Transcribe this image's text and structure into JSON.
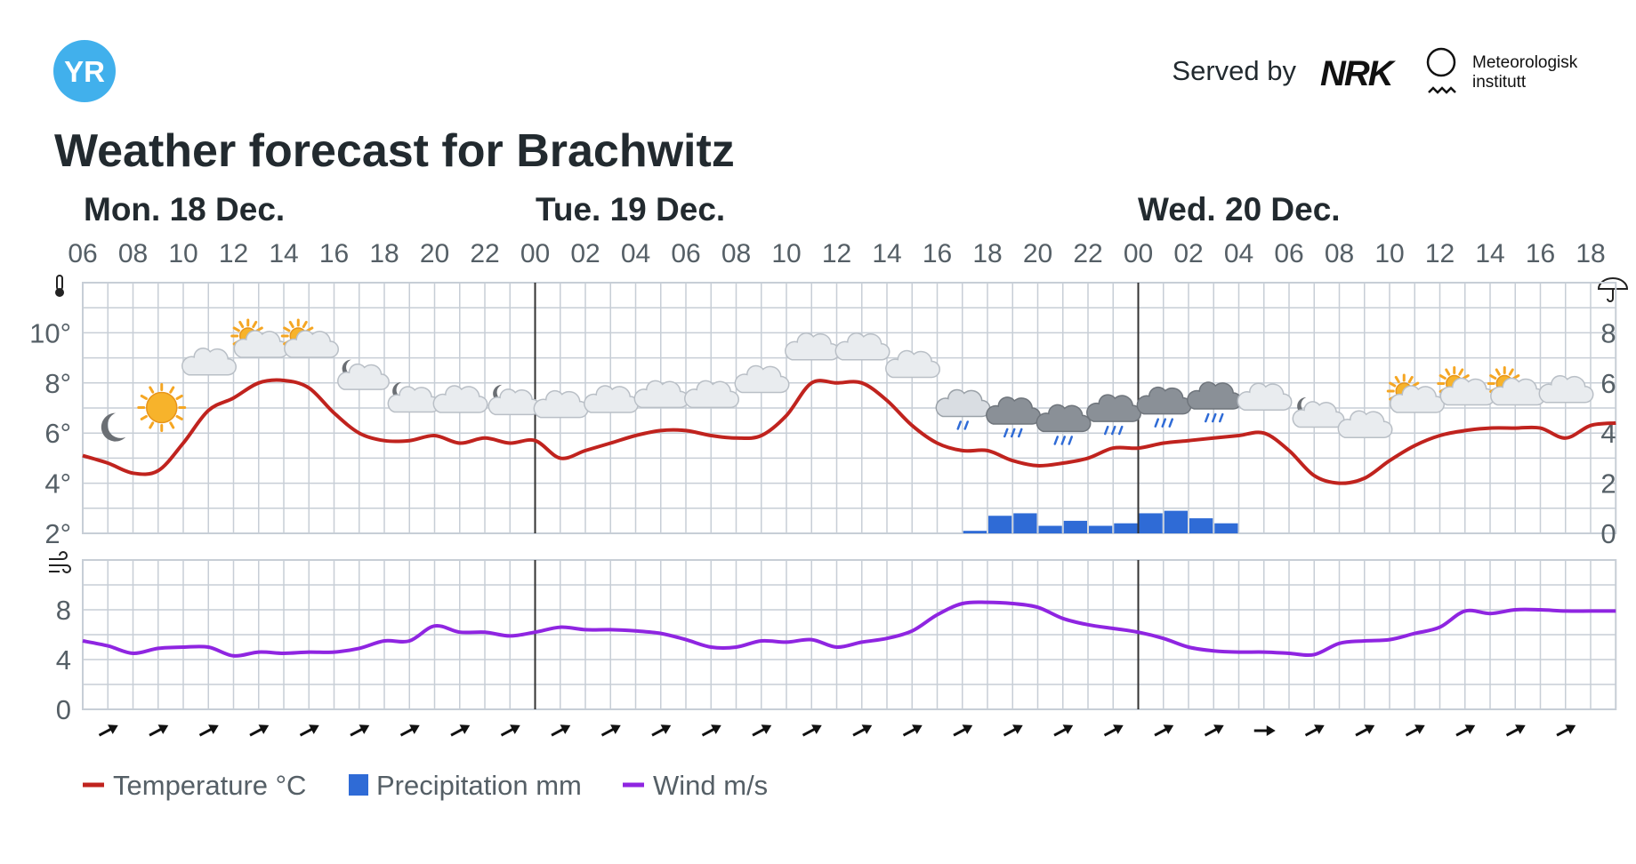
{
  "header": {
    "logo_text": "YR",
    "served_by": "Served by",
    "nrk_logo_text": "NRK",
    "met_name_line1": "Meteorologisk",
    "met_name_line2": "institutt"
  },
  "title": "Weather forecast for Brachwitz",
  "days": [
    "Mon. 18 Dec.",
    "Tue. 19 Dec.",
    "Wed. 20 Dec."
  ],
  "colors": {
    "temperature": "#c0231e",
    "precipitation": "#2f6bd6",
    "wind": "#8f25e1",
    "grid": "#c7ced6",
    "day_separator": "#333333",
    "logo": "#41b0ec",
    "text": "#222a2f",
    "muted_text": "#555f66"
  },
  "legend": {
    "temperature": "Temperature °C",
    "precipitation": "Precipitation mm",
    "wind": "Wind m/s"
  },
  "chart_data": [
    {
      "type": "line",
      "panel": "temperature-and-precipitation",
      "x_start": "Mon 18 Dec 06:00",
      "x_step_hours": 1,
      "x_tick_labels": [
        "06",
        "08",
        "10",
        "12",
        "14",
        "16",
        "18",
        "20",
        "22",
        "00",
        "02",
        "04",
        "06",
        "08",
        "10",
        "12",
        "14",
        "16",
        "18",
        "20",
        "22",
        "00",
        "02",
        "04",
        "06",
        "08",
        "10",
        "12",
        "14",
        "16",
        "18"
      ],
      "y_left_ticks": [
        "2°",
        "4°",
        "6°",
        "8°",
        "10°"
      ],
      "y_left_range": [
        2,
        12
      ],
      "y_right_ticks": [
        "0",
        "2",
        "4",
        "6",
        "8"
      ],
      "y_right_range": [
        0,
        10
      ],
      "grid": true,
      "series": [
        {
          "name": "Temperature °C",
          "values": [
            5.1,
            4.8,
            4.4,
            4.5,
            5.6,
            6.9,
            7.4,
            8.0,
            8.1,
            7.8,
            6.8,
            6.0,
            5.7,
            5.7,
            5.9,
            5.6,
            5.8,
            5.6,
            5.7,
            5.0,
            5.3,
            5.6,
            5.9,
            6.1,
            6.1,
            5.9,
            5.8,
            5.9,
            6.7,
            8.0,
            8.0,
            8.0,
            7.3,
            6.3,
            5.6,
            5.3,
            5.3,
            4.9,
            4.7,
            4.8,
            5.0,
            5.4,
            5.4,
            5.6,
            5.7,
            5.8,
            5.9,
            6.0,
            5.3,
            4.3,
            4.0,
            4.2,
            4.9,
            5.5,
            5.9,
            6.1,
            6.2,
            6.2,
            6.2,
            5.8,
            6.3,
            6.4
          ]
        },
        {
          "name": "Precipitation mm",
          "type": "bar",
          "values": [
            0,
            0,
            0,
            0,
            0,
            0,
            0,
            0,
            0,
            0,
            0,
            0,
            0,
            0,
            0,
            0,
            0,
            0,
            0,
            0,
            0,
            0,
            0,
            0,
            0,
            0,
            0,
            0,
            0,
            0,
            0,
            0,
            0,
            0,
            0,
            0.1,
            0.7,
            0.8,
            0.3,
            0.5,
            0.3,
            0.4,
            0.8,
            0.9,
            0.6,
            0.4,
            0,
            0,
            0,
            0,
            0,
            0,
            0,
            0,
            0,
            0,
            0,
            0,
            0,
            0,
            0,
            0
          ]
        }
      ],
      "weather_symbols": [
        {
          "hour": 1,
          "icon": "moon-icon"
        },
        {
          "hour": 3,
          "icon": "sun-icon"
        },
        {
          "hour": 5,
          "icon": "cloud-icon"
        },
        {
          "hour": 7,
          "icon": "partly-sunny-cloud-icon"
        },
        {
          "hour": 9,
          "icon": "partly-sunny-cloud-icon"
        },
        {
          "hour": 11,
          "icon": "night-cloud-icon"
        },
        {
          "hour": 13,
          "icon": "night-cloud-icon"
        },
        {
          "hour": 15,
          "icon": "cloud-icon"
        },
        {
          "hour": 17,
          "icon": "night-cloud-icon"
        },
        {
          "hour": 19,
          "icon": "cloud-icon"
        },
        {
          "hour": 21,
          "icon": "cloud-icon"
        },
        {
          "hour": 23,
          "icon": "cloud-icon"
        },
        {
          "hour": 25,
          "icon": "cloud-icon"
        },
        {
          "hour": 27,
          "icon": "cloud-icon"
        },
        {
          "hour": 29,
          "icon": "cloud-icon"
        },
        {
          "hour": 31,
          "icon": "cloud-icon"
        },
        {
          "hour": 33,
          "icon": "cloud-icon"
        },
        {
          "hour": 35,
          "icon": "light-rain-cloud-icon"
        },
        {
          "hour": 37,
          "icon": "rain-cloud-icon"
        },
        {
          "hour": 39,
          "icon": "rain-cloud-icon"
        },
        {
          "hour": 41,
          "icon": "rain-cloud-icon"
        },
        {
          "hour": 43,
          "icon": "rain-cloud-icon"
        },
        {
          "hour": 45,
          "icon": "rain-cloud-icon"
        },
        {
          "hour": 47,
          "icon": "cloud-icon"
        },
        {
          "hour": 49,
          "icon": "night-cloud-icon"
        },
        {
          "hour": 51,
          "icon": "cloud-icon"
        },
        {
          "hour": 53,
          "icon": "partly-sunny-cloud-icon"
        },
        {
          "hour": 55,
          "icon": "partly-sunny-cloud-icon"
        },
        {
          "hour": 57,
          "icon": "partly-sunny-cloud-icon"
        },
        {
          "hour": 59,
          "icon": "cloud-icon"
        }
      ]
    },
    {
      "type": "line",
      "panel": "wind",
      "x_start": "Mon 18 Dec 06:00",
      "x_step_hours": 1,
      "y_ticks": [
        "0",
        "4",
        "8"
      ],
      "y_range": [
        0,
        12
      ],
      "grid": true,
      "series": [
        {
          "name": "Wind m/s",
          "values": [
            5.5,
            5.1,
            4.5,
            4.9,
            5.0,
            5.0,
            4.3,
            4.6,
            4.5,
            4.6,
            4.6,
            4.9,
            5.5,
            5.5,
            6.7,
            6.2,
            6.2,
            5.9,
            6.2,
            6.6,
            6.4,
            6.4,
            6.3,
            6.1,
            5.6,
            5.0,
            5.0,
            5.5,
            5.4,
            5.6,
            5.0,
            5.4,
            5.7,
            6.3,
            7.6,
            8.5,
            8.6,
            8.5,
            8.2,
            7.3,
            6.8,
            6.5,
            6.2,
            5.7,
            5.0,
            4.7,
            4.6,
            4.6,
            4.5,
            4.4,
            5.3,
            5.5,
            5.6,
            6.1,
            6.6,
            7.9,
            7.7,
            8.0,
            8.0,
            7.9,
            7.9,
            7.9
          ]
        }
      ],
      "wind_arrows": [
        {
          "hour": 1,
          "direction": "north-east"
        },
        {
          "hour": 3,
          "direction": "north-east"
        },
        {
          "hour": 5,
          "direction": "north-east"
        },
        {
          "hour": 7,
          "direction": "north-east"
        },
        {
          "hour": 9,
          "direction": "north-east"
        },
        {
          "hour": 11,
          "direction": "north-east"
        },
        {
          "hour": 13,
          "direction": "north-east"
        },
        {
          "hour": 15,
          "direction": "north-east"
        },
        {
          "hour": 17,
          "direction": "north-east"
        },
        {
          "hour": 19,
          "direction": "north-east"
        },
        {
          "hour": 21,
          "direction": "north-east"
        },
        {
          "hour": 23,
          "direction": "north-east"
        },
        {
          "hour": 25,
          "direction": "north-east"
        },
        {
          "hour": 27,
          "direction": "north-east"
        },
        {
          "hour": 29,
          "direction": "north-east"
        },
        {
          "hour": 31,
          "direction": "north-east"
        },
        {
          "hour": 33,
          "direction": "north-east"
        },
        {
          "hour": 35,
          "direction": "north-east"
        },
        {
          "hour": 37,
          "direction": "north-east"
        },
        {
          "hour": 39,
          "direction": "north-east"
        },
        {
          "hour": 41,
          "direction": "north-east"
        },
        {
          "hour": 43,
          "direction": "north-east"
        },
        {
          "hour": 45,
          "direction": "north-east"
        },
        {
          "hour": 47,
          "direction": "east"
        },
        {
          "hour": 49,
          "direction": "north-east"
        },
        {
          "hour": 51,
          "direction": "north-east"
        },
        {
          "hour": 53,
          "direction": "north-east"
        },
        {
          "hour": 55,
          "direction": "north-east"
        },
        {
          "hour": 57,
          "direction": "north-east"
        },
        {
          "hour": 59,
          "direction": "north-east"
        }
      ]
    }
  ]
}
